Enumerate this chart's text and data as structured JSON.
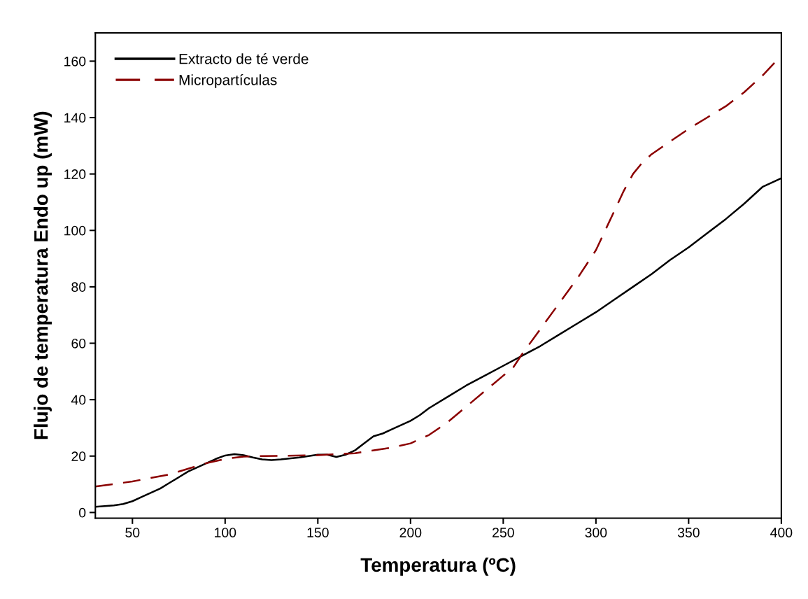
{
  "chart_data": {
    "type": "line",
    "xlabel": "Temperatura (ºC)",
    "ylabel": "Flujo de temperatura Endo up (mW)",
    "xlim": [
      30,
      400
    ],
    "ylim": [
      -2,
      170
    ],
    "xticks": [
      50,
      100,
      150,
      200,
      250,
      300,
      350,
      400
    ],
    "yticks": [
      0,
      20,
      40,
      60,
      80,
      100,
      120,
      140,
      160
    ],
    "grid": false,
    "legend": "top left",
    "marker": "none",
    "series": [
      {
        "name": "Extracto de té verde",
        "color": "#000000",
        "line_style": "solid",
        "x": [
          30,
          40,
          45,
          50,
          55,
          60,
          65,
          70,
          75,
          80,
          85,
          90,
          95,
          100,
          105,
          110,
          115,
          120,
          125,
          130,
          140,
          150,
          155,
          160,
          165,
          170,
          175,
          180,
          185,
          190,
          195,
          200,
          205,
          210,
          220,
          230,
          240,
          250,
          260,
          270,
          280,
          290,
          300,
          310,
          320,
          330,
          340,
          350,
          360,
          370,
          380,
          390,
          400
        ],
        "values": [
          2,
          2.5,
          3,
          4,
          5.5,
          7,
          8.5,
          10.5,
          12.5,
          14.5,
          16,
          17.5,
          19,
          20.2,
          20.7,
          20.3,
          19.5,
          18.8,
          18.6,
          18.8,
          19.5,
          20.5,
          20.5,
          19.7,
          20.5,
          22,
          24.5,
          27,
          28,
          29.5,
          31,
          32.5,
          34.5,
          37,
          41,
          45,
          48.5,
          52,
          55.5,
          59,
          63,
          67,
          71,
          75.5,
          80,
          84.5,
          89.5,
          94,
          99,
          104,
          109.5,
          115.5,
          118.5
        ]
      },
      {
        "name": "Micropartículas",
        "color": "#8b0000",
        "line_style": "dashed",
        "x": [
          30,
          50,
          70,
          90,
          100,
          110,
          120,
          150,
          170,
          190,
          200,
          210,
          220,
          230,
          240,
          250,
          255,
          260,
          270,
          280,
          290,
          300,
          310,
          315,
          320,
          325,
          330,
          340,
          350,
          360,
          370,
          380,
          390,
          400
        ],
        "values": [
          9.2,
          11,
          13.5,
          17.5,
          19,
          19.8,
          20,
          20.3,
          21,
          23,
          24.5,
          27.5,
          32,
          37.5,
          43,
          48.5,
          51,
          56,
          65,
          74,
          83,
          93,
          107,
          114,
          120,
          124,
          127,
          131.5,
          136,
          140,
          144,
          149,
          155,
          162
        ]
      }
    ]
  }
}
